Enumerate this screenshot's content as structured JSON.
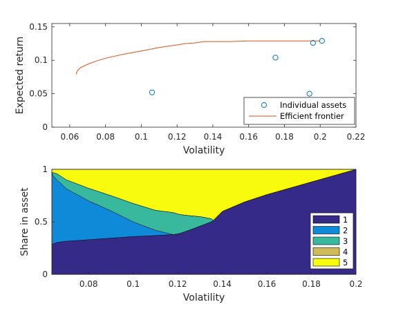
{
  "chart_data": [
    {
      "type": "line",
      "xlabel": "Volatility",
      "ylabel": "Expected return",
      "xlim": [
        0.05,
        0.22
      ],
      "ylim": [
        0,
        0.155
      ],
      "xticks": [
        "0.06",
        "0.08",
        "0.1",
        "0.12",
        "0.14",
        "0.16",
        "0.18",
        "0.2",
        "0.22"
      ],
      "xtick_values": [
        0.06,
        0.08,
        0.1,
        0.12,
        0.14,
        0.16,
        0.18,
        0.2,
        0.22
      ],
      "yticks": [
        "0",
        "0.05",
        "0.1",
        "0.15"
      ],
      "ytick_values": [
        0,
        0.05,
        0.1,
        0.15
      ],
      "legend_position": "bottom-right",
      "series": [
        {
          "name": "Individual assets",
          "style": "scatter",
          "color": "#0072BD",
          "x": [
            0.106,
            0.175,
            0.194,
            0.196,
            0.201
          ],
          "y": [
            0.052,
            0.104,
            0.05,
            0.126,
            0.129
          ]
        },
        {
          "name": "Efficient frontier",
          "style": "line",
          "color": "#D95319",
          "x": [
            0.0635,
            0.0645,
            0.066,
            0.07,
            0.075,
            0.08,
            0.09,
            0.1,
            0.11,
            0.12,
            0.125,
            0.13,
            0.135,
            0.14,
            0.15,
            0.16,
            0.17,
            0.18,
            0.19,
            0.2
          ],
          "y": [
            0.079,
            0.085,
            0.089,
            0.094,
            0.099,
            0.103,
            0.109,
            0.114,
            0.119,
            0.123,
            0.125,
            0.126,
            0.128,
            0.128,
            0.128,
            0.129,
            0.129,
            0.129,
            0.129,
            0.129
          ]
        }
      ]
    },
    {
      "type": "area",
      "xlabel": "Volatility",
      "ylabel": "Share in asset",
      "xlim": [
        0.0635,
        0.2
      ],
      "ylim": [
        0,
        1
      ],
      "xticks": [
        "0.08",
        "0.1",
        "0.12",
        "0.14",
        "0.16",
        "0.18",
        "0.2"
      ],
      "xtick_values": [
        0.08,
        0.1,
        0.12,
        0.14,
        0.16,
        0.18,
        0.2
      ],
      "yticks": [
        "0",
        "0.5",
        "1"
      ],
      "ytick_values": [
        0,
        0.5,
        1
      ],
      "legend_position": "bottom-right",
      "x": [
        0.0635,
        0.064,
        0.066,
        0.07,
        0.08,
        0.09,
        0.1,
        0.11,
        0.118,
        0.121,
        0.125,
        0.13,
        0.135,
        0.136,
        0.14,
        0.15,
        0.16,
        0.18,
        0.2
      ],
      "series": [
        {
          "name": "1",
          "color": "#352A87",
          "values": [
            0.28,
            0.29,
            0.305,
            0.315,
            0.33,
            0.345,
            0.36,
            0.37,
            0.378,
            0.39,
            0.42,
            0.46,
            0.5,
            0.515,
            0.6,
            0.69,
            0.76,
            0.88,
            1.0
          ]
        },
        {
          "name": "2",
          "color": "#0F8AD9",
          "values": [
            0.69,
            0.65,
            0.59,
            0.5,
            0.37,
            0.26,
            0.14,
            0.05,
            0.0,
            0.0,
            0.0,
            0.0,
            0.0,
            0.0,
            0.0,
            0.0,
            0.0,
            0.0,
            0.0
          ]
        },
        {
          "name": "3",
          "color": "#38B99E",
          "values": [
            0.0,
            0.03,
            0.06,
            0.085,
            0.12,
            0.145,
            0.175,
            0.19,
            0.21,
            0.18,
            0.14,
            0.09,
            0.03,
            0.0,
            0.0,
            0.0,
            0.0,
            0.0,
            0.0
          ]
        },
        {
          "name": "4",
          "color": "#D1BB59",
          "values": [
            0,
            0,
            0,
            0,
            0,
            0,
            0,
            0,
            0,
            0,
            0,
            0,
            0,
            0,
            0,
            0,
            0,
            0,
            0
          ]
        },
        {
          "name": "5",
          "color": "#F9FB0E",
          "values": [
            0.03,
            0.03,
            0.045,
            0.1,
            0.18,
            0.25,
            0.325,
            0.39,
            0.412,
            0.43,
            0.44,
            0.45,
            0.47,
            0.485,
            0.4,
            0.31,
            0.24,
            0.12,
            0.0
          ]
        }
      ]
    }
  ]
}
